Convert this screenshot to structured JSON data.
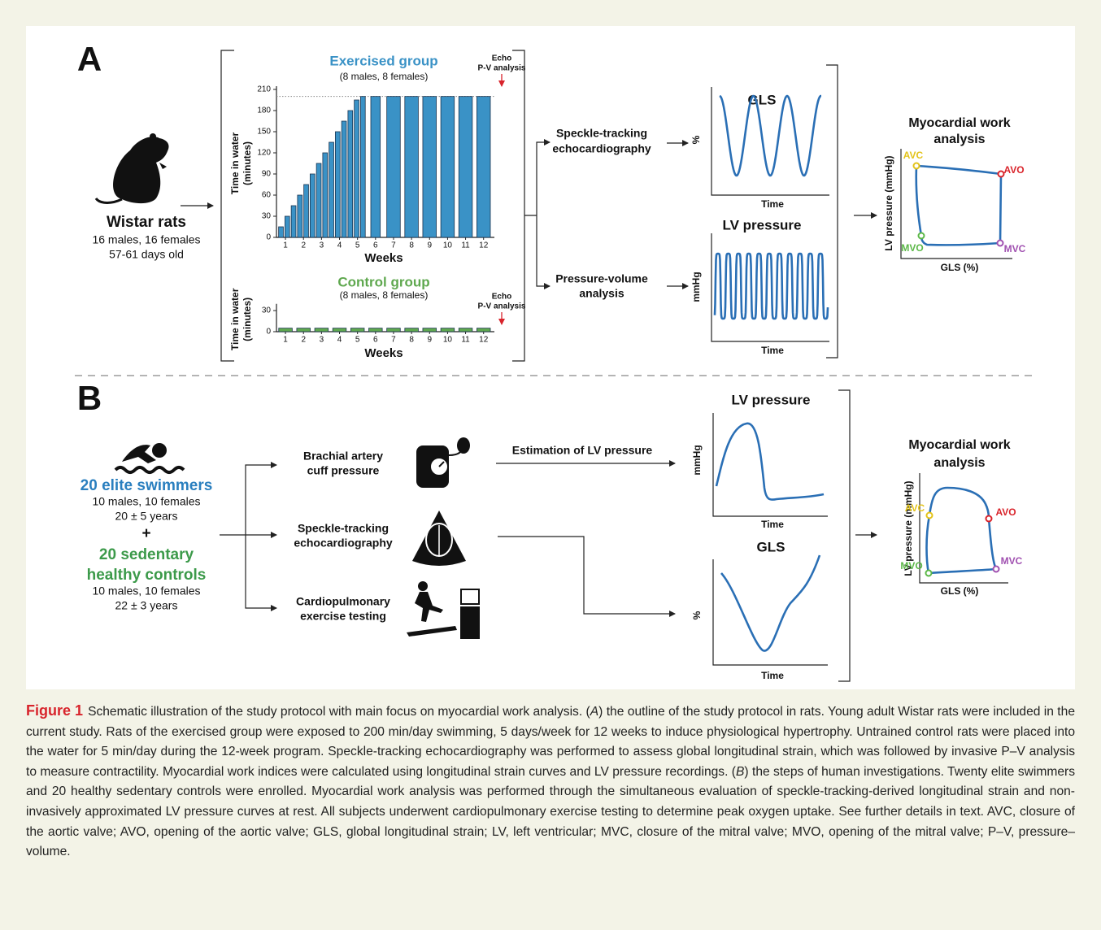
{
  "panel_a": {
    "label": "A",
    "subject": {
      "name": "Wistar rats",
      "details": [
        "16 males, 16 females",
        "57-61 days old"
      ]
    },
    "methods": [
      [
        "Speckle-tracking",
        "echocardiography"
      ],
      [
        "Pressure-volume",
        "analysis"
      ]
    ],
    "gls": {
      "title": "GLS",
      "y_label": "%",
      "x_label": "Time"
    },
    "lv_pressure": {
      "title": "LV pressure",
      "y_label": "mmHg",
      "x_label": "Time"
    },
    "work": {
      "title": [
        "Myocardial work",
        "analysis"
      ],
      "x_label": "GLS (%)",
      "y_label": "LV pressure (mmHg)",
      "points": [
        "AVC",
        "AVO",
        "MVC",
        "MVO"
      ]
    }
  },
  "chart_data": [
    {
      "type": "bar",
      "title": "Exercised group",
      "subtitle": "(8 males, 8 females)",
      "y_label": [
        "Time in water",
        "(minutes)"
      ],
      "x_label": "Weeks",
      "annotation": [
        "Echo",
        "P-V analysis"
      ],
      "color": "#3a92c6",
      "x": [
        0.75,
        1.1,
        1.45,
        1.8,
        2.15,
        2.5,
        2.85,
        3.2,
        3.55,
        3.9,
        4.25,
        4.6,
        4.95,
        5.3,
        6,
        7,
        8,
        9,
        10,
        11,
        12
      ],
      "values": [
        15,
        30,
        45,
        60,
        75,
        90,
        105,
        120,
        135,
        150,
        165,
        180,
        195,
        200,
        200,
        200,
        200,
        200,
        200,
        200,
        200
      ],
      "xlim": [
        0.5,
        12.6
      ],
      "xticks": [
        1,
        2,
        3,
        4,
        5,
        6,
        7,
        8,
        9,
        10,
        11,
        12
      ],
      "ylim": [
        0,
        210
      ],
      "yticks": [
        0,
        30,
        60,
        90,
        120,
        150,
        180,
        210
      ],
      "reference_line": 200
    },
    {
      "type": "bar",
      "title": "Control group",
      "subtitle": "(8 males, 8 females)",
      "y_label": [
        "Time in water",
        "(minutes)"
      ],
      "x_label": "Weeks",
      "annotation": [
        "Echo",
        "P-V analysis"
      ],
      "color": "#5fa84f",
      "x": [
        1,
        2,
        3,
        4,
        5,
        6,
        7,
        8,
        9,
        10,
        11,
        12
      ],
      "values": [
        5,
        5,
        5,
        5,
        5,
        5,
        5,
        5,
        5,
        5,
        5,
        5
      ],
      "xlim": [
        0.5,
        12.6
      ],
      "xticks": [
        1,
        2,
        3,
        4,
        5,
        6,
        7,
        8,
        9,
        10,
        11,
        12
      ],
      "ylim": [
        0,
        35
      ],
      "yticks": [
        0,
        30
      ]
    }
  ],
  "panel_b": {
    "label": "B",
    "groups": [
      {
        "name": [
          "20 elite swimmers"
        ],
        "details": [
          "10 males, 10 females",
          "20 ± 5 years"
        ]
      },
      {
        "name": [
          "20 sedentary",
          "healthy controls"
        ],
        "details": [
          "10 males, 10 females",
          "22 ± 3 years"
        ]
      }
    ],
    "plus": "+",
    "methods": [
      [
        "Brachial artery",
        "cuff pressure"
      ],
      [
        "Speckle-tracking",
        "echocardiography"
      ],
      [
        "Cardiopulmonary",
        "exercise testing"
      ]
    ],
    "estimation": "Estimation of LV pressure",
    "lv_pressure": {
      "title": "LV pressure",
      "y_label": "mmHg",
      "x_label": "Time"
    },
    "gls": {
      "title": "GLS",
      "y_label": "%",
      "x_label": "Time"
    },
    "work": {
      "title": [
        "Myocardial work",
        "analysis"
      ],
      "x_label": "GLS (%)",
      "y_label": "LV pressure (mmHg)",
      "points": [
        "AVC",
        "AVO",
        "MVC",
        "MVO"
      ]
    }
  },
  "caption": {
    "label": "Figure 1",
    "segments": [
      "Schematic illustration of the study protocol with main focus on myocardial work analysis. (",
      "A",
      ") the outline of the study protocol in rats. Young adult Wistar rats were included in the current study. Rats of the exercised group were exposed to 200 min/day swimming, 5 days/week for 12 weeks to induce physiological hypertrophy. Untrained control rats were placed into the water for 5 min/day during the 12-week program. Speckle-tracking echocardiography was performed to assess global longitudinal strain, which was followed by invasive P–V analysis to measure contractility. Myocardial work indices were calculated using longitudinal strain curves and LV pressure recordings. (",
      "B",
      ") the steps of human investigations. Twenty elite swimmers and 20 healthy sedentary controls were enrolled. Myocardial work analysis was performed through the simultaneous evaluation of speckle-tracking-derived longitudinal strain and non-invasively approximated LV pressure curves at rest. All subjects underwent cardiopulmonary exercise testing to determine peak oxygen uptake. See further details in text. AVC, closure of the aortic valve; AVO, opening of the aortic valve; GLS, global longitudinal strain; LV, left ventricular; MVC, closure of the mitral valve; MVO, opening of the mitral valve; P–V, pressure–volume."
    ]
  }
}
